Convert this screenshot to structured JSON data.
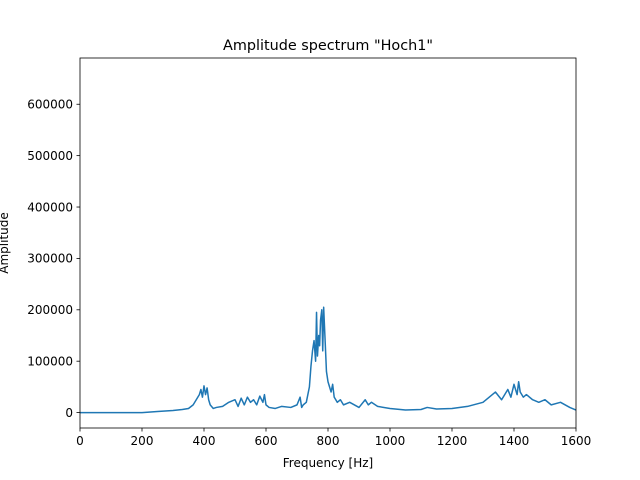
{
  "chart_data": {
    "type": "line",
    "title": "Amplitude spectrum \"Hoch1\"",
    "xlabel": "Frequency [Hz]",
    "ylabel": "Amplitude",
    "xlim": [
      0,
      1600
    ],
    "ylim": [
      -30000,
      690000
    ],
    "xticks": [
      0,
      200,
      400,
      600,
      800,
      1000,
      1200,
      1400,
      1600
    ],
    "yticks": [
      0,
      100000,
      200000,
      300000,
      400000,
      500000,
      600000
    ],
    "grid": false,
    "legend": "none",
    "series": [
      {
        "name": "",
        "color": "#1f77b4",
        "x": [
          0,
          100,
          200,
          250,
          300,
          330,
          350,
          365,
          375,
          385,
          390,
          395,
          400,
          405,
          410,
          415,
          420,
          430,
          440,
          460,
          480,
          500,
          510,
          520,
          530,
          540,
          550,
          560,
          570,
          580,
          590,
          595,
          600,
          610,
          630,
          650,
          680,
          700,
          710,
          715,
          720,
          730,
          740,
          745,
          750,
          755,
          760,
          763,
          766,
          770,
          773,
          776,
          780,
          783,
          786,
          790,
          795,
          800,
          805,
          810,
          815,
          820,
          830,
          840,
          850,
          870,
          900,
          920,
          930,
          940,
          960,
          1000,
          1050,
          1100,
          1120,
          1150,
          1200,
          1250,
          1300,
          1320,
          1340,
          1360,
          1380,
          1390,
          1400,
          1410,
          1415,
          1420,
          1430,
          1440,
          1460,
          1480,
          1500,
          1520,
          1550,
          1580,
          1600
        ],
        "y": [
          0,
          0,
          0,
          2000,
          4000,
          6000,
          8000,
          15000,
          25000,
          35000,
          45000,
          30000,
          52000,
          35000,
          48000,
          25000,
          15000,
          8000,
          10000,
          12000,
          20000,
          25000,
          12000,
          28000,
          15000,
          30000,
          20000,
          25000,
          15000,
          32000,
          20000,
          35000,
          15000,
          10000,
          8000,
          12000,
          10000,
          15000,
          30000,
          10000,
          15000,
          20000,
          50000,
          90000,
          120000,
          140000,
          100000,
          195000,
          110000,
          150000,
          130000,
          180000,
          200000,
          120000,
          205000,
          150000,
          80000,
          60000,
          50000,
          40000,
          55000,
          30000,
          20000,
          25000,
          15000,
          20000,
          10000,
          25000,
          15000,
          20000,
          12000,
          8000,
          5000,
          6000,
          10000,
          7000,
          8000,
          12000,
          20000,
          30000,
          40000,
          25000,
          45000,
          30000,
          55000,
          35000,
          60000,
          40000,
          30000,
          35000,
          25000,
          20000,
          25000,
          15000,
          20000,
          10000,
          5000
        ]
      }
    ]
  }
}
